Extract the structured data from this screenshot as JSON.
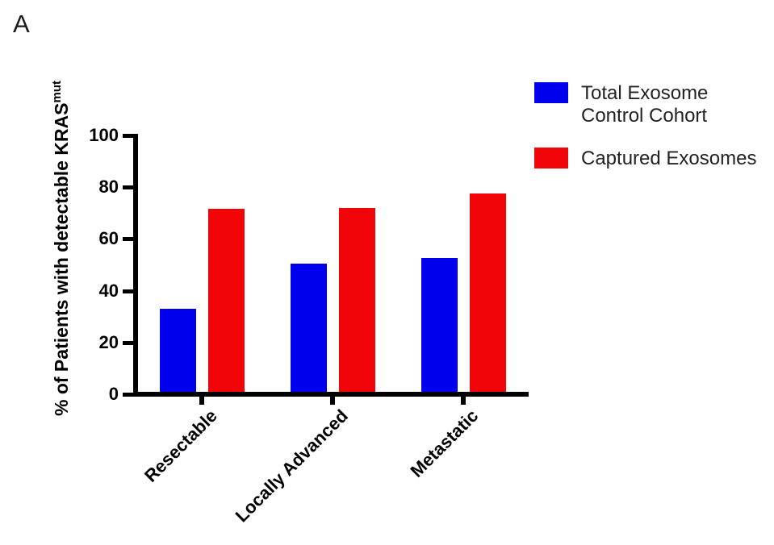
{
  "panel_label": "A",
  "colors": {
    "series_blue": "#0000EE",
    "series_red": "#F20508",
    "axis": "#000000"
  },
  "legend": {
    "entries": [
      {
        "color_key": "series_blue",
        "lines": [
          "Total Exosome",
          "Control Cohort"
        ]
      },
      {
        "color_key": "series_red",
        "lines": [
          "Captured Exosomes"
        ]
      }
    ]
  },
  "y_axis": {
    "label_main": "% of Patients with detectable KRAS",
    "label_superscript": "mut"
  },
  "chart_data": {
    "type": "bar",
    "title": "",
    "xlabel": "",
    "ylabel": "% of Patients with detectable KRAS^mut",
    "categories": [
      "Resectable",
      "Locally Advanced",
      "Metastatic"
    ],
    "series": [
      {
        "name": "Total Exosome Control Cohort",
        "color": "#0000EE",
        "values": [
          33,
          50.5,
          52.5
        ]
      },
      {
        "name": "Captured Exosomes",
        "color": "#F20508",
        "values": [
          71.5,
          72,
          77.5
        ]
      }
    ],
    "ylim": [
      0,
      100
    ],
    "yticks": [
      0,
      20,
      40,
      60,
      80,
      100
    ],
    "grid": false,
    "legend_position": "top-right",
    "bar_orientation": "vertical",
    "category_label_rotation_deg": -45
  }
}
